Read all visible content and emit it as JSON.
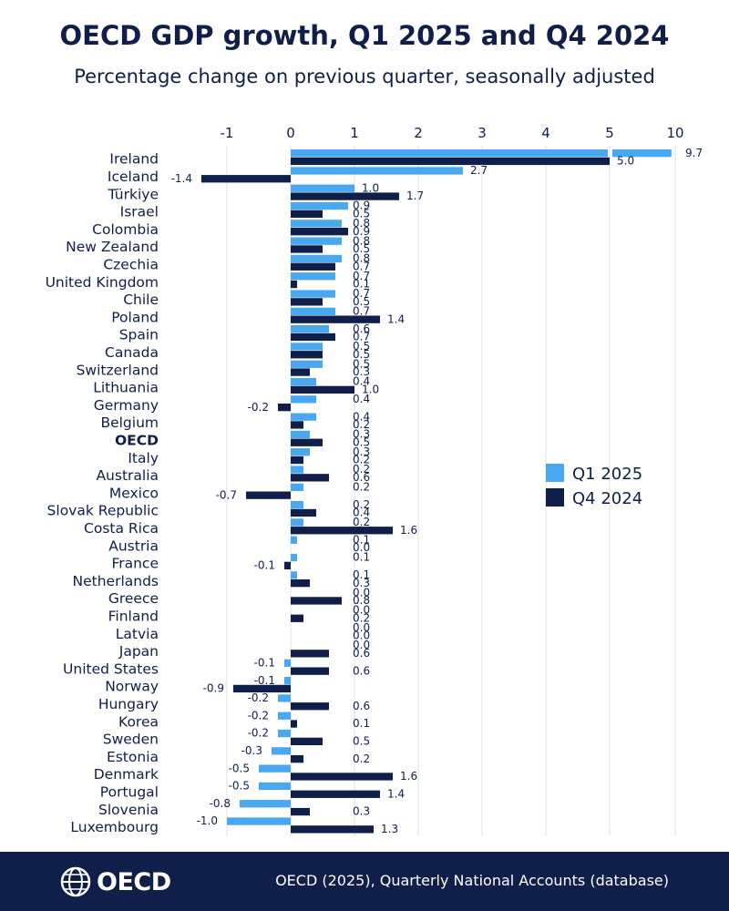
{
  "title": "OECD GDP growth, Q1 2025 and Q4 2024",
  "subtitle": "Percentage change on previous quarter, seasonally adjusted",
  "footer": {
    "logo_text": "OECD",
    "source": "OECD (2025), Quarterly National Accounts (database)"
  },
  "colors": {
    "q1": "#4aa8f0",
    "q4": "#0f1f4a",
    "text": "#0f1f4a",
    "grid": "#e0e0e0"
  },
  "chart_data": {
    "type": "bar",
    "orientation": "horizontal",
    "title": "OECD GDP growth, Q1 2025 and Q4 2024",
    "xlabel": "",
    "ylabel": "",
    "axis_ticks": [
      "-1",
      "0",
      "1",
      "2",
      "3",
      "4",
      "5",
      "10"
    ],
    "axis_note": "broken scale: linear from -1 to 5, jumps to 10 after a break",
    "categories": [
      "Ireland",
      "Iceland",
      "Türkiye",
      "Israel",
      "Colombia",
      "New Zealand",
      "Czechia",
      "United Kingdom",
      "Chile",
      "Poland",
      "Spain",
      "Canada",
      "Switzerland",
      "Lithuania",
      "Germany",
      "Belgium",
      "OECD",
      "Italy",
      "Australia",
      "Mexico",
      "Slovak Republic",
      "Costa Rica",
      "Austria",
      "France",
      "Netherlands",
      "Greece",
      "Finland",
      "Latvia",
      "Japan",
      "United States",
      "Norway",
      "Hungary",
      "Korea",
      "Sweden",
      "Estonia",
      "Denmark",
      "Portugal",
      "Slovenia",
      "Luxembourg"
    ],
    "highlight": "OECD",
    "series": [
      {
        "name": "Q1 2025",
        "values": [
          9.7,
          2.7,
          1.0,
          0.9,
          0.8,
          0.8,
          0.8,
          0.7,
          0.7,
          0.7,
          0.6,
          0.5,
          0.5,
          0.4,
          0.4,
          0.4,
          0.3,
          0.3,
          0.2,
          0.2,
          0.2,
          0.2,
          0.1,
          0.1,
          0.1,
          0.0,
          0.0,
          0.0,
          0.0,
          -0.1,
          -0.1,
          -0.2,
          -0.2,
          -0.2,
          -0.3,
          -0.5,
          -0.5,
          -0.8,
          -1.0
        ]
      },
      {
        "name": "Q4 2024",
        "values": [
          5.0,
          -1.4,
          1.7,
          0.5,
          0.9,
          0.5,
          0.7,
          0.1,
          0.5,
          1.4,
          0.7,
          0.5,
          0.3,
          1.0,
          -0.2,
          0.2,
          0.5,
          0.2,
          0.6,
          -0.7,
          0.4,
          1.6,
          0.0,
          -0.1,
          0.3,
          0.8,
          0.2,
          0.0,
          0.6,
          0.6,
          -0.9,
          0.6,
          0.1,
          0.5,
          0.2,
          1.6,
          1.4,
          0.3,
          1.3
        ]
      }
    ],
    "legend": {
      "position": "right-middle",
      "items": [
        "Q1 2025",
        "Q4 2024"
      ]
    }
  }
}
